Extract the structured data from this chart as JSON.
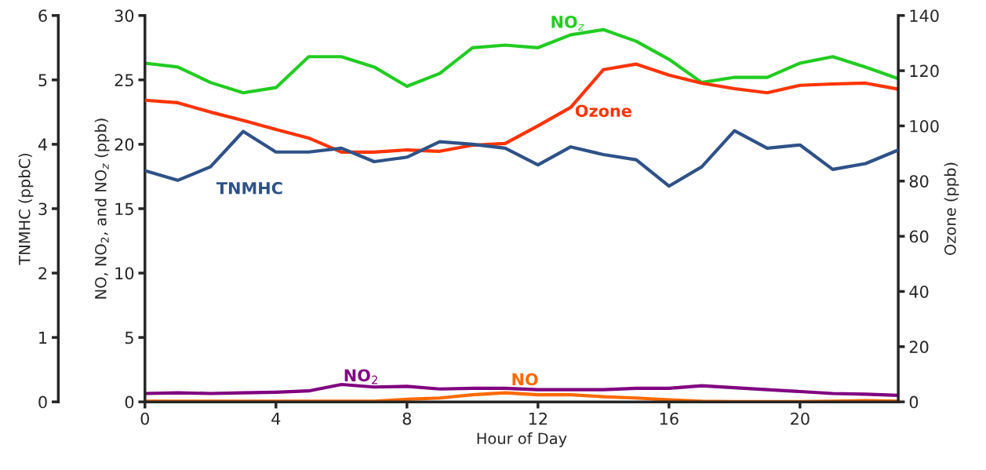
{
  "chart_data": {
    "type": "line",
    "xlabel": "Hour of Day",
    "ylabel": "NO, NO$_{2}$, and NO$_{z}$ (ppb)",
    "y2label": "Ozone (ppb)",
    "y3label": "TNMHC (ppbC)",
    "x": [
      0,
      1,
      2,
      3,
      4,
      5,
      6,
      7,
      8,
      9,
      10,
      11,
      12,
      13,
      14,
      15,
      16,
      17,
      18,
      19,
      20,
      21,
      22,
      23
    ],
    "xlim": [
      0,
      23
    ],
    "xticks": [
      0,
      4,
      8,
      12,
      16,
      20
    ],
    "ylim": [
      0,
      30
    ],
    "yticks": [
      0,
      5,
      10,
      15,
      20,
      25,
      30
    ],
    "y2lim": [
      0,
      140
    ],
    "y2ticks": [
      0,
      20,
      40,
      60,
      80,
      100,
      120,
      140
    ],
    "y3lim": [
      0,
      6
    ],
    "y3ticks": [
      0,
      1,
      2,
      3,
      4,
      5,
      6
    ],
    "grid": false,
    "legend": false,
    "marker": "none",
    "line_style": "solid",
    "series": [
      {
        "name": "NO$_{z}$",
        "color": "#22cc22",
        "values": [
          26.3,
          26.0,
          24.8,
          24.0,
          24.4,
          26.8,
          26.8,
          26.0,
          24.5,
          25.5,
          27.5,
          27.7,
          27.5,
          28.5,
          28.9,
          28.0,
          26.6,
          24.8,
          25.2,
          25.2,
          26.3,
          26.8,
          26.0,
          25.1
        ]
      },
      {
        "name": "Ozone",
        "color": "#ff3300",
        "axis": "y2",
        "values": [
          109.3,
          108.4,
          105,
          102,
          98.7,
          95.6,
          90.5,
          90.5,
          91.3,
          90.8,
          93,
          93.6,
          100,
          106.7,
          120.4,
          122.4,
          118.4,
          115.5,
          113.5,
          112,
          114.7,
          115.2,
          115.5,
          113.3
        ]
      },
      {
        "name": "TNMHC",
        "color": "#2e5288",
        "axis": "y3",
        "values": [
          3.59,
          3.44,
          3.65,
          4.2,
          3.88,
          3.88,
          3.94,
          3.73,
          3.8,
          4.04,
          4.0,
          3.94,
          3.68,
          3.96,
          3.84,
          3.76,
          3.35,
          3.65,
          4.21,
          3.94,
          3.99,
          3.61,
          3.7,
          3.91
        ]
      },
      {
        "name": "NO$_{2}$",
        "color": "#800080",
        "values": [
          0.65,
          0.7,
          0.65,
          0.7,
          0.75,
          0.85,
          1.35,
          1.15,
          1.2,
          1.0,
          1.05,
          1.05,
          0.95,
          0.95,
          0.95,
          1.05,
          1.05,
          1.25,
          1.1,
          0.95,
          0.8,
          0.65,
          0.6,
          0.5
        ]
      },
      {
        "name": "NO",
        "color": "#ff6a00",
        "values": [
          0.05,
          0.05,
          0.05,
          0.05,
          0.05,
          0.05,
          0.05,
          0.05,
          0.2,
          0.3,
          0.55,
          0.7,
          0.55,
          0.55,
          0.4,
          0.3,
          0.15,
          0.05,
          0.02,
          0.02,
          0.02,
          0.05,
          0.1,
          0.05
        ]
      }
    ]
  }
}
